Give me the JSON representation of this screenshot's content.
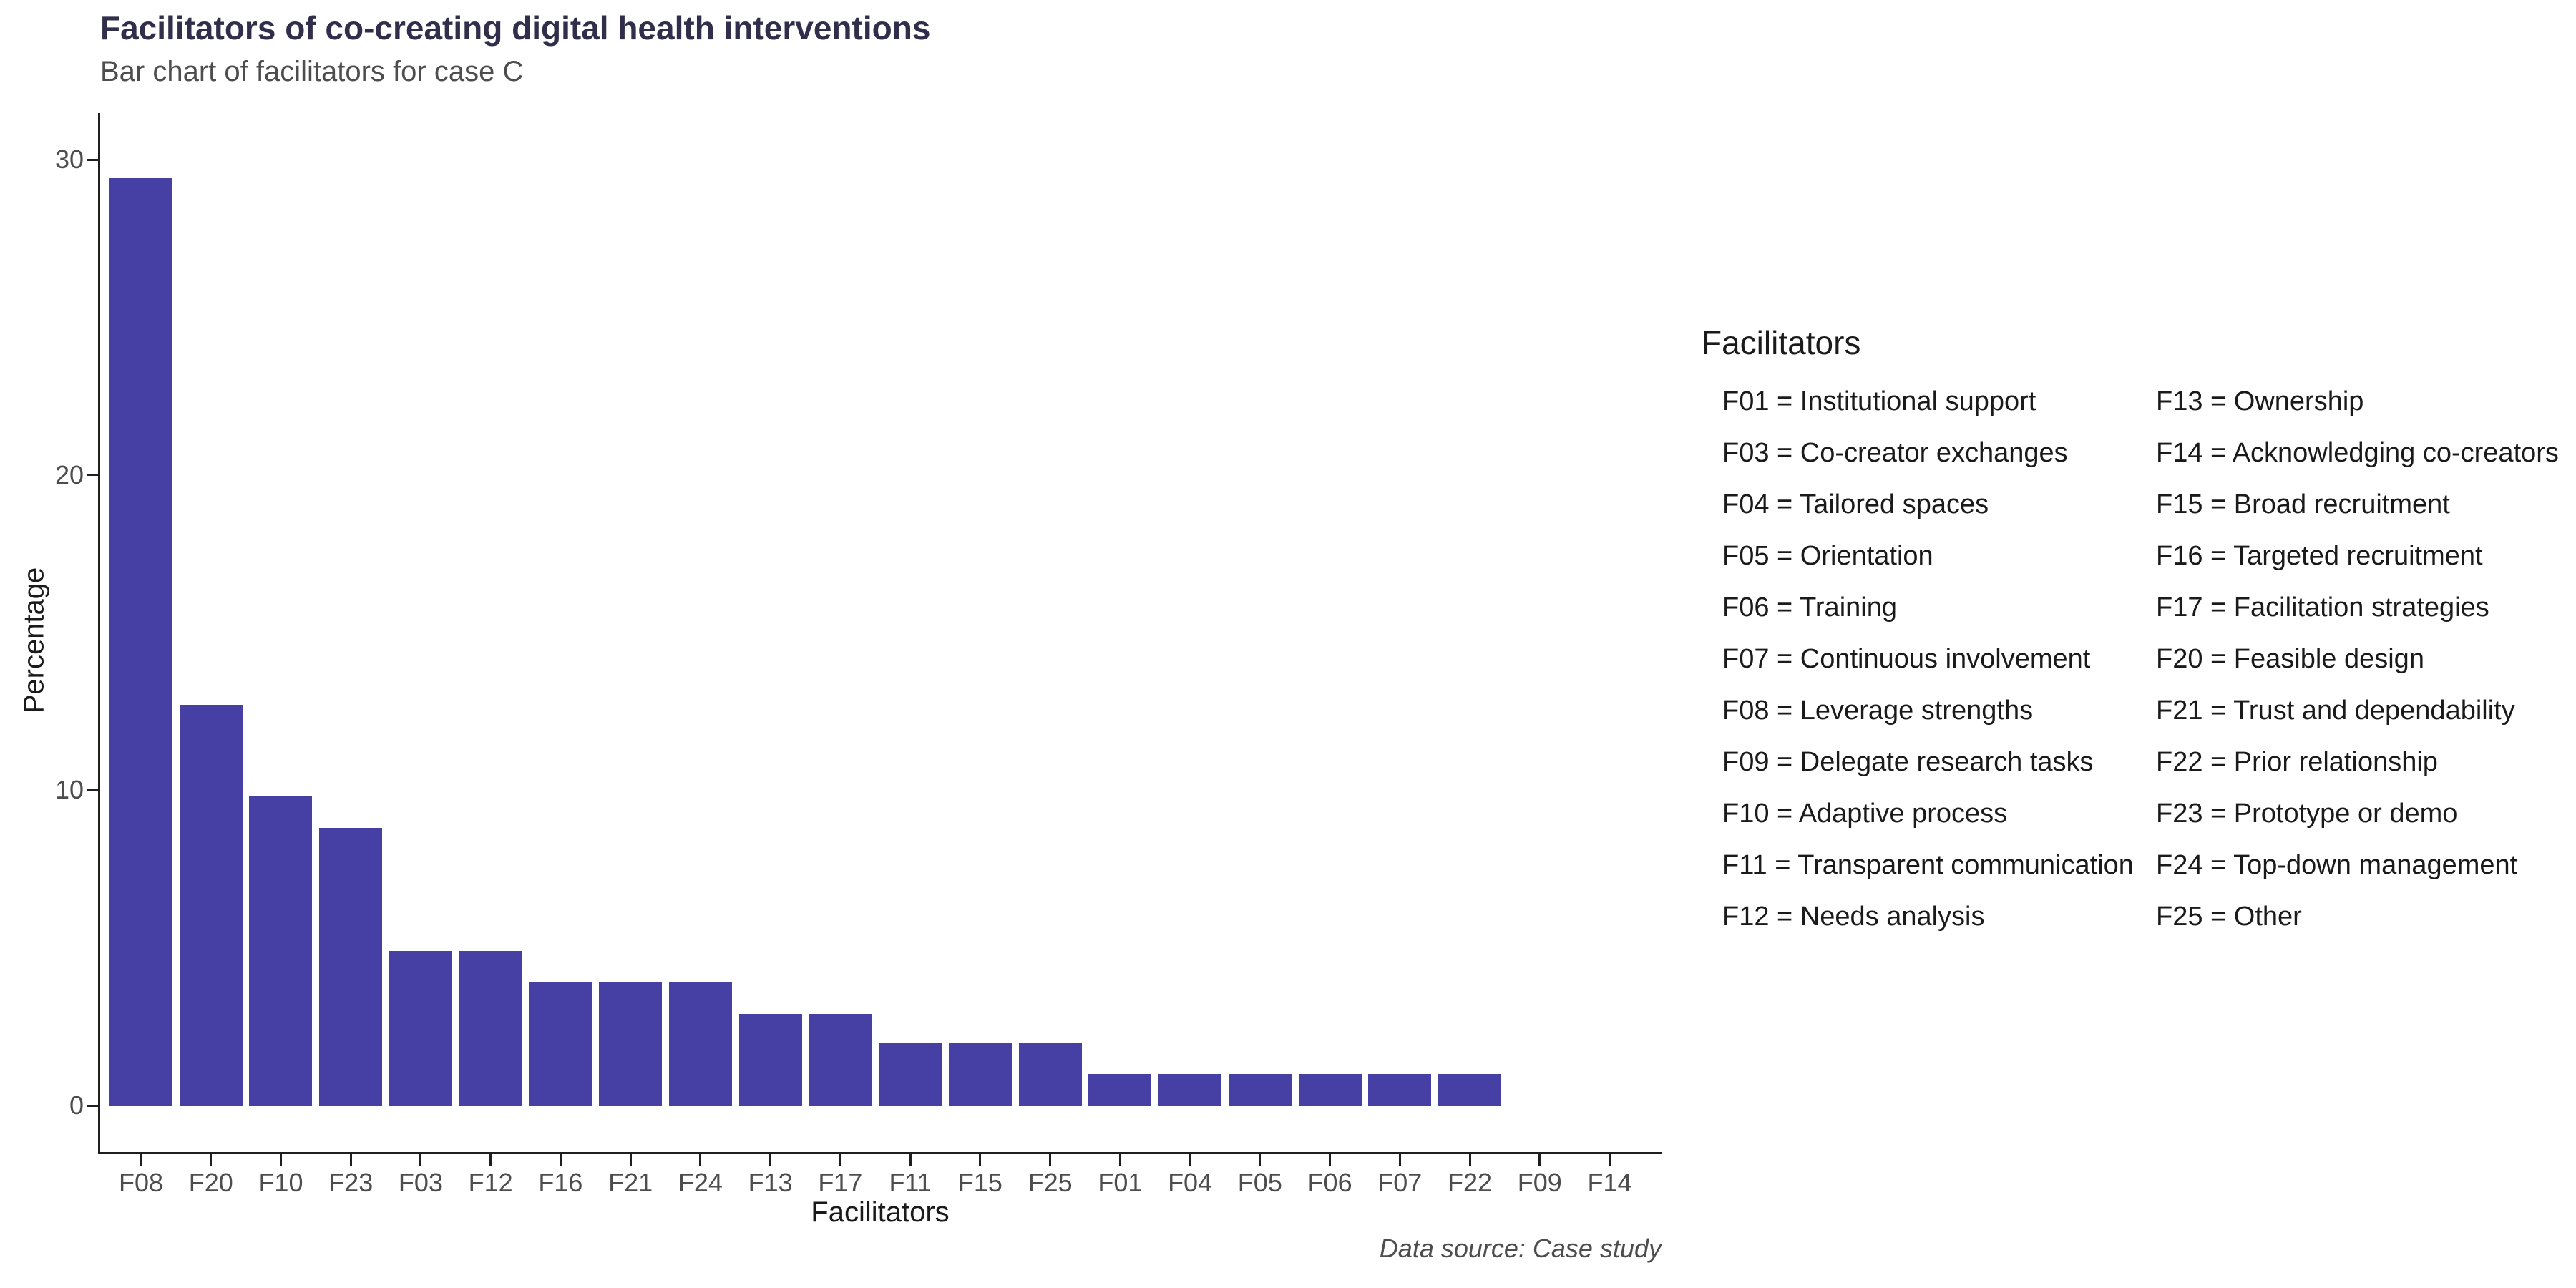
{
  "page": {
    "background_color": "#ffffff",
    "title_color": "#302e4a",
    "text_muted_color": "#4d4d4d",
    "axis_color": "#1f1f1f"
  },
  "chart_data": {
    "type": "bar",
    "title": "Facilitators of co-creating digital health interventions",
    "subtitle": "Bar chart of facilitators for case C",
    "xlabel": "Facilitators",
    "ylabel": "Percentage",
    "caption": "Data source: Case study",
    "bar_color": "#4640a4",
    "grid": false,
    "ylim": [
      0,
      30.9
    ],
    "yticks": [
      0,
      10,
      20,
      30
    ],
    "categories": [
      "F08",
      "F20",
      "F10",
      "F23",
      "F03",
      "F12",
      "F16",
      "F21",
      "F24",
      "F13",
      "F17",
      "F11",
      "F15",
      "F25",
      "F01",
      "F04",
      "F05",
      "F06",
      "F07",
      "F22",
      "F09",
      "F14"
    ],
    "values": [
      29.4,
      12.7,
      9.8,
      8.8,
      4.9,
      4.9,
      3.9,
      3.9,
      3.9,
      2.9,
      2.9,
      2.0,
      2.0,
      2.0,
      1.0,
      1.0,
      1.0,
      1.0,
      1.0,
      1.0,
      0,
      0
    ],
    "legend": {
      "title": "Facilitators",
      "position": "right",
      "columns": [
        [
          "F01 = Institutional support",
          "F03 = Co-creator exchanges",
          "F04 = Tailored spaces",
          "F05 = Orientation",
          "F06 = Training",
          "F07 = Continuous involvement",
          "F08 = Leverage strengths",
          "F09 = Delegate research tasks",
          "F10 = Adaptive process",
          "F11 = Transparent communication",
          "F12 = Needs analysis"
        ],
        [
          "F13 = Ownership",
          "F14 = Acknowledging co-creators",
          "F15 = Broad recruitment",
          "F16 = Targeted recruitment",
          "F17 = Facilitation strategies",
          "F20 = Feasible design",
          "F21 = Trust and dependability",
          "F22 = Prior relationship",
          "F23 = Prototype or demo",
          "F24 = Top-down management",
          "F25 = Other"
        ]
      ]
    }
  }
}
